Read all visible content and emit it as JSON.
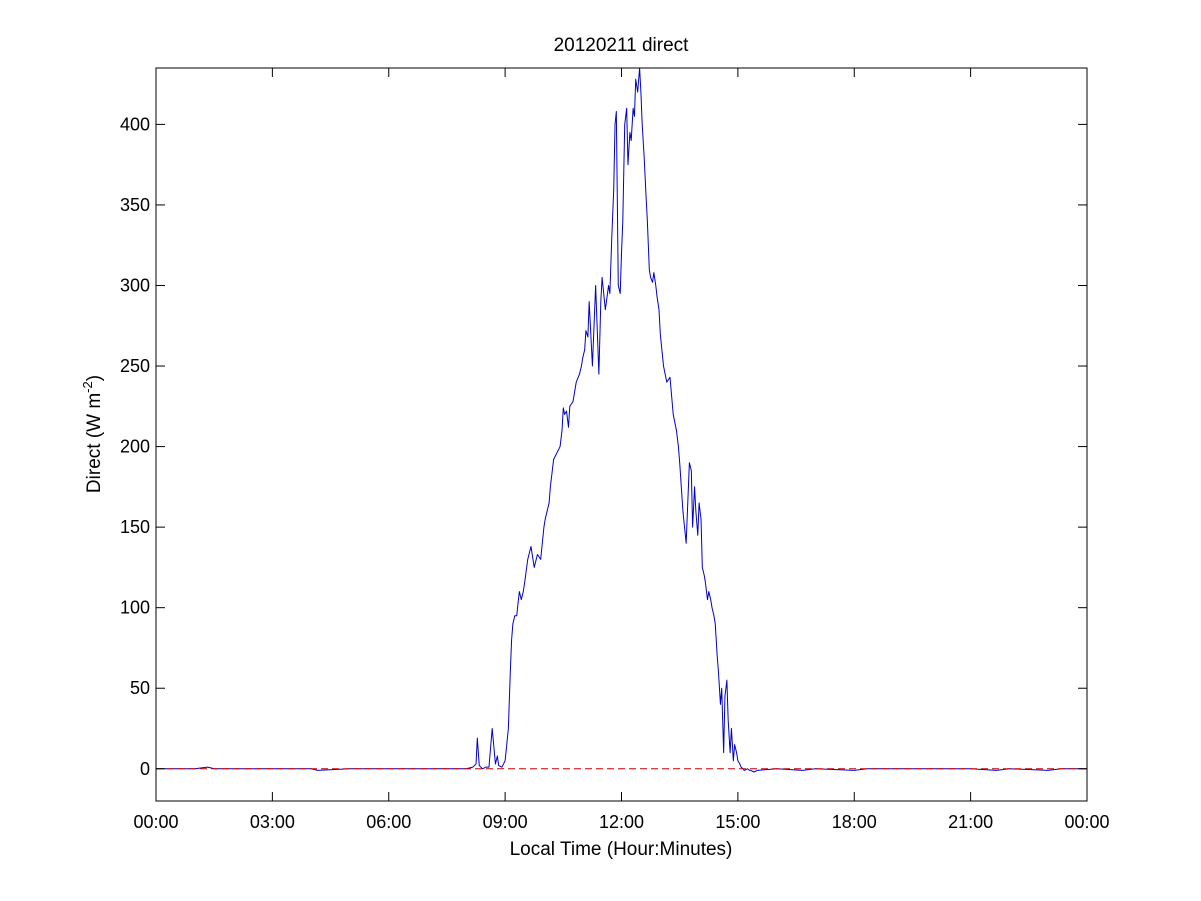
{
  "chart_data": {
    "type": "line",
    "title": "20120211 direct",
    "xlabel": "Local Time (Hour:Minutes)",
    "ylabel": {
      "text": "Direct (W m",
      "superscript": "-2",
      "close": ")"
    },
    "xlim": [
      0,
      1440
    ],
    "ylim": [
      -20,
      435
    ],
    "x_unit": "minutes since local midnight",
    "x_ticks": [
      0,
      180,
      360,
      540,
      720,
      900,
      1080,
      1260,
      1440
    ],
    "x_tick_labels": [
      "00:00",
      "03:00",
      "06:00",
      "09:00",
      "12:00",
      "15:00",
      "18:00",
      "21:00",
      "00:00"
    ],
    "y_ticks": [
      0,
      50,
      100,
      150,
      200,
      250,
      300,
      350,
      400
    ],
    "y_tick_labels": [
      "0",
      "50",
      "100",
      "150",
      "200",
      "250",
      "300",
      "350",
      "400"
    ],
    "grid": false,
    "box": true,
    "colors": {
      "series": "#0000cc",
      "reference": "#cc0000",
      "axes": "#000000"
    },
    "series": [
      {
        "style": "solid",
        "x": [
          0,
          60,
          80,
          90,
          120,
          180,
          240,
          250,
          300,
          360,
          420,
          480,
          490,
          495,
          497,
          500,
          505,
          510,
          515,
          520,
          525,
          528,
          530,
          535,
          540,
          545,
          548,
          550,
          552,
          555,
          558,
          560,
          562,
          565,
          568,
          570,
          575,
          580,
          585,
          590,
          595,
          600,
          602,
          605,
          608,
          610,
          615,
          620,
          625,
          628,
          630,
          632,
          635,
          638,
          640,
          645,
          650,
          655,
          658,
          660,
          663,
          665,
          668,
          670,
          675,
          680,
          685,
          688,
          690,
          695,
          700,
          702,
          705,
          708,
          710,
          712,
          715,
          718,
          720,
          722,
          725,
          728,
          730,
          733,
          735,
          738,
          740,
          742,
          745,
          748,
          750,
          752,
          755,
          758,
          760,
          763,
          765,
          768,
          770,
          773,
          775,
          778,
          780,
          785,
          790,
          795,
          800,
          805,
          808,
          810,
          815,
          820,
          825,
          828,
          830,
          833,
          835,
          838,
          840,
          843,
          845,
          848,
          850,
          853,
          855,
          858,
          860,
          863,
          865,
          868,
          870,
          873,
          875,
          878,
          880,
          883,
          885,
          888,
          890,
          893,
          895,
          898,
          900,
          903,
          905,
          908,
          910,
          915,
          918,
          920,
          925,
          930,
          960,
          1000,
          1020,
          1080,
          1100,
          1140,
          1200,
          1260,
          1300,
          1320,
          1380,
          1400,
          1420,
          1440
        ],
        "values": [
          0,
          0,
          1,
          0,
          0,
          0,
          0,
          -1,
          0,
          0,
          0,
          0,
          1,
          3,
          19,
          2,
          0,
          1,
          1,
          25,
          3,
          8,
          2,
          1,
          5,
          25,
          60,
          80,
          90,
          95,
          95,
          103,
          110,
          105,
          110,
          115,
          130,
          138,
          125,
          133,
          130,
          150,
          155,
          160,
          165,
          175,
          192,
          196,
          200,
          210,
          224,
          220,
          222,
          212,
          225,
          228,
          240,
          245,
          250,
          255,
          260,
          272,
          268,
          290,
          250,
          300,
          245,
          290,
          305,
          285,
          300,
          295,
          330,
          360,
          400,
          408,
          300,
          295,
          320,
          340,
          400,
          410,
          375,
          395,
          390,
          410,
          405,
          428,
          420,
          435,
          420,
          400,
          380,
          355,
          340,
          310,
          305,
          302,
          308,
          300,
          293,
          285,
          270,
          250,
          240,
          243,
          220,
          210,
          200,
          190,
          160,
          140,
          190,
          185,
          150,
          175,
          160,
          145,
          165,
          155,
          125,
          120,
          115,
          105,
          110,
          105,
          100,
          95,
          90,
          70,
          60,
          40,
          50,
          10,
          45,
          55,
          30,
          10,
          25,
          5,
          15,
          10,
          5,
          3,
          1,
          0,
          -1,
          0,
          -1,
          -1,
          -2,
          -1,
          0,
          -1,
          0,
          -1,
          0,
          0,
          0,
          0,
          -1,
          0,
          -1,
          0,
          0,
          0
        ]
      },
      {
        "style": "dashed",
        "x": [
          0,
          1440
        ],
        "values": [
          0,
          0
        ]
      }
    ]
  }
}
